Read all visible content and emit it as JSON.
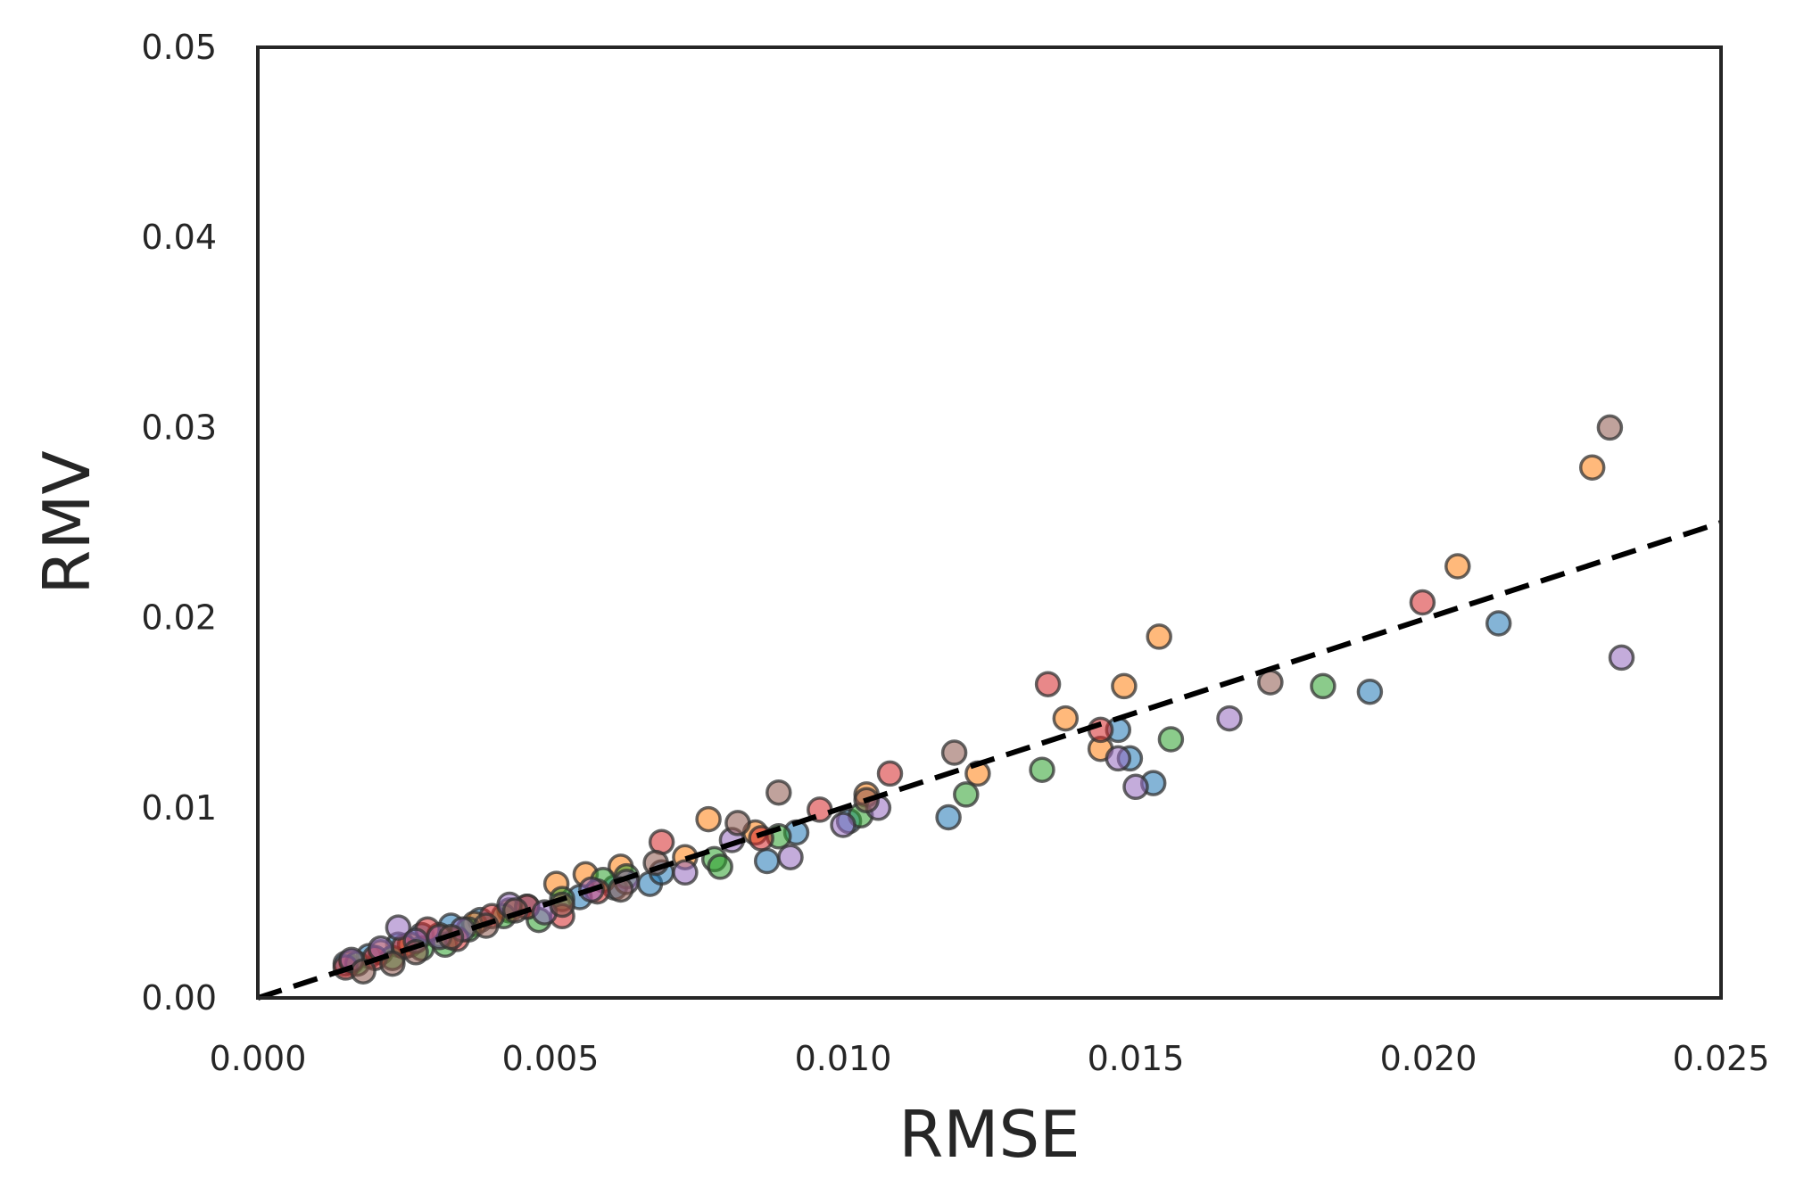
{
  "chart_data": {
    "type": "scatter",
    "xlabel": "RMSE",
    "ylabel": "RMV",
    "xlim": [
      0.0,
      0.025
    ],
    "ylim": [
      0.0,
      0.05
    ],
    "xticks": [
      "0.000",
      "0.005",
      "0.010",
      "0.015",
      "0.020",
      "0.025"
    ],
    "yticks": [
      "0.00",
      "0.01",
      "0.02",
      "0.03",
      "0.04",
      "0.05"
    ],
    "grid": false,
    "legend": "none",
    "reference_line": {
      "style": "dashed",
      "color": "#000000",
      "slope": 1.0,
      "intercept": 0.0
    },
    "marker_edge_color": "#333333",
    "series": [
      {
        "color": "#1f77b4",
        "points": [
          [
            0.0015,
            0.0018
          ],
          [
            0.0019,
            0.0022
          ],
          [
            0.0024,
            0.0028
          ],
          [
            0.0028,
            0.0033
          ],
          [
            0.0033,
            0.0038
          ],
          [
            0.0038,
            0.0041
          ],
          [
            0.0046,
            0.0048
          ],
          [
            0.0055,
            0.0053
          ],
          [
            0.0061,
            0.0058
          ],
          [
            0.0067,
            0.006
          ],
          [
            0.0069,
            0.0066
          ],
          [
            0.0087,
            0.0072
          ],
          [
            0.0092,
            0.0087
          ],
          [
            0.0101,
            0.0093
          ],
          [
            0.0118,
            0.0095
          ],
          [
            0.0147,
            0.0141
          ],
          [
            0.0149,
            0.0126
          ],
          [
            0.0153,
            0.0113
          ],
          [
            0.019,
            0.0161
          ],
          [
            0.0212,
            0.0197
          ]
        ]
      },
      {
        "color": "#ff7f0e",
        "points": [
          [
            0.0016,
            0.0019
          ],
          [
            0.0021,
            0.0024
          ],
          [
            0.0026,
            0.0028
          ],
          [
            0.0031,
            0.0033
          ],
          [
            0.0037,
            0.0039
          ],
          [
            0.0043,
            0.0046
          ],
          [
            0.0051,
            0.006
          ],
          [
            0.0056,
            0.0065
          ],
          [
            0.0062,
            0.0069
          ],
          [
            0.0073,
            0.0074
          ],
          [
            0.0077,
            0.0094
          ],
          [
            0.0085,
            0.0087
          ],
          [
            0.0104,
            0.0107
          ],
          [
            0.0123,
            0.0118
          ],
          [
            0.0138,
            0.0147
          ],
          [
            0.0144,
            0.0131
          ],
          [
            0.0148,
            0.0164
          ],
          [
            0.0154,
            0.019
          ],
          [
            0.0205,
            0.0227
          ],
          [
            0.0228,
            0.0279
          ]
        ]
      },
      {
        "color": "#2ca02c",
        "points": [
          [
            0.0017,
            0.0018
          ],
          [
            0.0023,
            0.0021
          ],
          [
            0.0028,
            0.0026
          ],
          [
            0.0032,
            0.0028
          ],
          [
            0.0036,
            0.0036
          ],
          [
            0.0042,
            0.0043
          ],
          [
            0.0048,
            0.0041
          ],
          [
            0.0052,
            0.0052
          ],
          [
            0.0059,
            0.0062
          ],
          [
            0.0063,
            0.0064
          ],
          [
            0.0078,
            0.0073
          ],
          [
            0.0079,
            0.0069
          ],
          [
            0.0089,
            0.0085
          ],
          [
            0.0103,
            0.0096
          ],
          [
            0.0121,
            0.0107
          ],
          [
            0.0134,
            0.012
          ],
          [
            0.0156,
            0.0136
          ],
          [
            0.0182,
            0.0164
          ]
        ]
      },
      {
        "color": "#d62728",
        "points": [
          [
            0.0015,
            0.0016
          ],
          [
            0.002,
            0.0021
          ],
          [
            0.0025,
            0.0027
          ],
          [
            0.0029,
            0.0036
          ],
          [
            0.0034,
            0.0031
          ],
          [
            0.004,
            0.0043
          ],
          [
            0.0046,
            0.0048
          ],
          [
            0.0052,
            0.0043
          ],
          [
            0.0058,
            0.0056
          ],
          [
            0.0069,
            0.0082
          ],
          [
            0.0086,
            0.0084
          ],
          [
            0.0096,
            0.0099
          ],
          [
            0.0108,
            0.0118
          ],
          [
            0.0135,
            0.0165
          ],
          [
            0.0144,
            0.0141
          ],
          [
            0.0199,
            0.0208
          ]
        ]
      },
      {
        "color": "#9467bd",
        "points": [
          [
            0.0016,
            0.002
          ],
          [
            0.0021,
            0.0026
          ],
          [
            0.0024,
            0.0037
          ],
          [
            0.0027,
            0.003
          ],
          [
            0.0031,
            0.0032
          ],
          [
            0.0035,
            0.0036
          ],
          [
            0.0043,
            0.0049
          ],
          [
            0.0049,
            0.0045
          ],
          [
            0.0057,
            0.0057
          ],
          [
            0.0063,
            0.0061
          ],
          [
            0.0073,
            0.0066
          ],
          [
            0.0081,
            0.0083
          ],
          [
            0.0091,
            0.0074
          ],
          [
            0.01,
            0.0091
          ],
          [
            0.0106,
            0.01
          ],
          [
            0.0147,
            0.0126
          ],
          [
            0.015,
            0.0111
          ],
          [
            0.0166,
            0.0147
          ],
          [
            0.0233,
            0.0179
          ]
        ]
      },
      {
        "color": "#8c564b",
        "points": [
          [
            0.0018,
            0.0014
          ],
          [
            0.0023,
            0.0018
          ],
          [
            0.0027,
            0.0024
          ],
          [
            0.0033,
            0.0032
          ],
          [
            0.0039,
            0.0038
          ],
          [
            0.0044,
            0.0046
          ],
          [
            0.0052,
            0.0049
          ],
          [
            0.0062,
            0.0057
          ],
          [
            0.0068,
            0.0071
          ],
          [
            0.0082,
            0.0092
          ],
          [
            0.0089,
            0.0108
          ],
          [
            0.0104,
            0.0104
          ],
          [
            0.0119,
            0.0129
          ],
          [
            0.0173,
            0.0166
          ],
          [
            0.0231,
            0.03
          ]
        ]
      }
    ]
  }
}
